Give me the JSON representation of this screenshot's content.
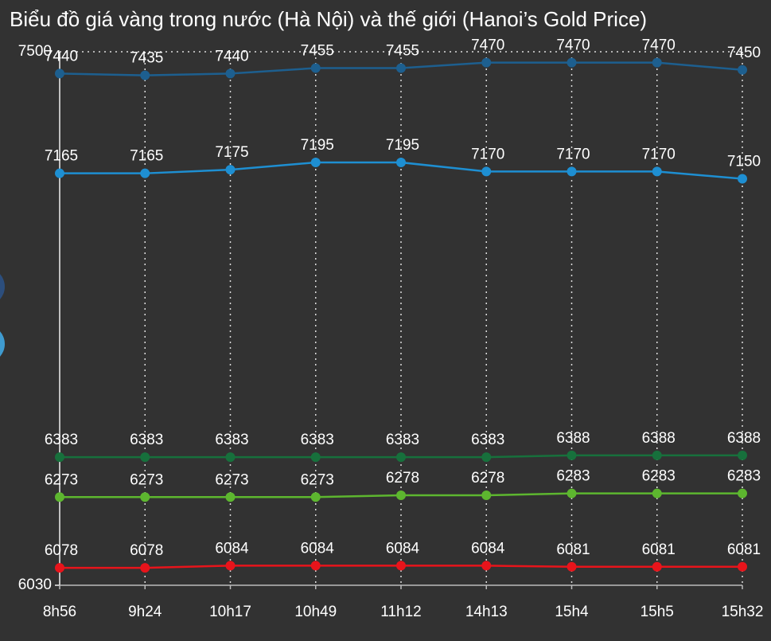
{
  "chart_data": {
    "type": "line",
    "title": "Biểu đồ giá vàng trong nước (Hà Nội) và thế giới (Hanoi’s Gold Price)",
    "categories": [
      "8h56",
      "9h24",
      "10h17",
      "10h49",
      "11h12",
      "14h13",
      "15h4",
      "15h5",
      "15h32"
    ],
    "series": [
      {
        "color": "#1d5f8f",
        "values": [
          7440,
          7435,
          7440,
          7455,
          7455,
          7470,
          7470,
          7470,
          7450
        ]
      },
      {
        "color": "#1e8fd2",
        "values": [
          7165,
          7165,
          7175,
          7195,
          7195,
          7170,
          7170,
          7170,
          7150
        ]
      },
      {
        "color": "#17703c",
        "values": [
          6383,
          6383,
          6383,
          6383,
          6383,
          6383,
          6388,
          6388,
          6388
        ]
      },
      {
        "color": "#5db62f",
        "values": [
          6273,
          6273,
          6273,
          6273,
          6278,
          6278,
          6283,
          6283,
          6283
        ]
      },
      {
        "color": "#e8141b",
        "values": [
          6078,
          6078,
          6084,
          6084,
          6084,
          6084,
          6081,
          6081,
          6081
        ]
      }
    ],
    "ylim": [
      6030,
      7500
    ],
    "yticks": [
      6030,
      7500
    ],
    "grid": true
  }
}
